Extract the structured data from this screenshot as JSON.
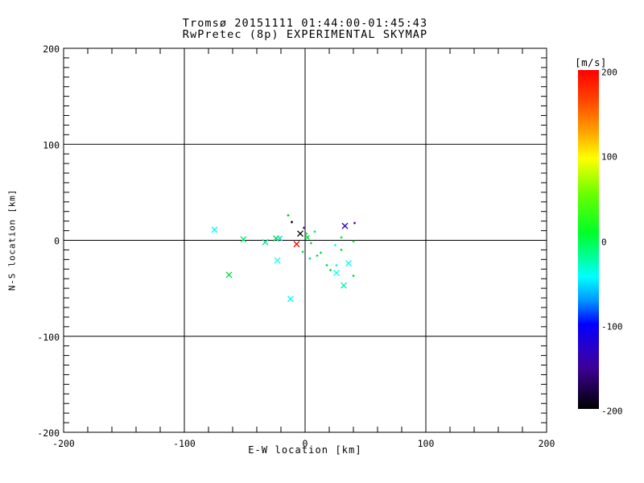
{
  "window": {
    "background": "#FFFFFF",
    "text_color": "#000000"
  },
  "chart_data": {
    "type": "scatter",
    "title": "Tromsø 20151111 01:44:00-01:45:43",
    "subtitle": "RwPretec (8p) EXPERIMENTAL SKYMAP",
    "xlabel": "E-W location [km]",
    "ylabel": "N-S location [km]",
    "xlim": [
      -200,
      200
    ],
    "ylim": [
      -200,
      200
    ],
    "x_ticks": [
      -200,
      -100,
      0,
      100,
      200
    ],
    "y_ticks": [
      -200,
      -100,
      0,
      100,
      200
    ],
    "x_minor_interval": 20,
    "y_minor_interval": 10,
    "grid": true,
    "legend_position": "none",
    "axis_color": "#000000",
    "points": [
      {
        "x": -75,
        "y": 11,
        "color": "#00FFFF",
        "marker": "x",
        "size": 7
      },
      {
        "x": -63,
        "y": -36,
        "color": "#00DC3C",
        "marker": "x",
        "size": 7
      },
      {
        "x": -51,
        "y": 1,
        "color": "#00E65A",
        "marker": "x",
        "size": 7
      },
      {
        "x": -33,
        "y": -2,
        "color": "#00E691",
        "marker": "x",
        "size": 7
      },
      {
        "x": -24,
        "y": 2,
        "color": "#00DC50",
        "marker": "x",
        "size": 7
      },
      {
        "x": -21,
        "y": 2,
        "color": "#00E0C8",
        "marker": "x",
        "size": 6
      },
      {
        "x": -23,
        "y": -21,
        "color": "#00FFFF",
        "marker": "x",
        "size": 7
      },
      {
        "x": -12,
        "y": -61,
        "color": "#00FFFF",
        "marker": "x",
        "size": 7
      },
      {
        "x": -14,
        "y": 26,
        "color": "#00C81E",
        "marker": "+",
        "size": 3
      },
      {
        "x": -11,
        "y": 19,
        "color": "#000000",
        "marker": "+",
        "size": 3
      },
      {
        "x": -4,
        "y": 7,
        "color": "#000000",
        "marker": "x",
        "size": 7
      },
      {
        "x": -7,
        "y": -4,
        "color": "#FF0000",
        "marker": "x",
        "size": 7
      },
      {
        "x": -1,
        "y": 13,
        "color": "#6400AA",
        "marker": "+",
        "size": 3
      },
      {
        "x": 1,
        "y": 7,
        "color": "#00DC3C",
        "marker": "+",
        "size": 3
      },
      {
        "x": 2,
        "y": 3,
        "color": "#00DC3C",
        "marker": "x",
        "size": 5
      },
      {
        "x": 5,
        "y": -3,
        "color": "#00DC3C",
        "marker": "+",
        "size": 3
      },
      {
        "x": 8,
        "y": 9,
        "color": "#00E08C",
        "marker": "+",
        "size": 3
      },
      {
        "x": -2,
        "y": -12,
        "color": "#00DC3C",
        "marker": "+",
        "size": 3
      },
      {
        "x": 4,
        "y": -19,
        "color": "#00D2A0",
        "marker": "+",
        "size": 3
      },
      {
        "x": 10,
        "y": -16,
        "color": "#00DC3C",
        "marker": "+",
        "size": 3
      },
      {
        "x": 13,
        "y": -13,
        "color": "#00DC3C",
        "marker": "+",
        "size": 3
      },
      {
        "x": 18,
        "y": -26,
        "color": "#00DC3C",
        "marker": "+",
        "size": 3
      },
      {
        "x": 21,
        "y": -31,
        "color": "#00DC3C",
        "marker": "+",
        "size": 3
      },
      {
        "x": 26,
        "y": -26,
        "color": "#00FFC8",
        "marker": "+",
        "size": 3
      },
      {
        "x": 25,
        "y": -5,
        "color": "#00FFFF",
        "marker": "+",
        "size": 3
      },
      {
        "x": 30,
        "y": 3,
        "color": "#00DC3C",
        "marker": "+",
        "size": 3
      },
      {
        "x": 30,
        "y": -10,
        "color": "#00DC3C",
        "marker": "+",
        "size": 3
      },
      {
        "x": 40,
        "y": -1,
        "color": "#00DC3C",
        "marker": "+",
        "size": 3
      },
      {
        "x": 40,
        "y": -37,
        "color": "#00DC3C",
        "marker": "+",
        "size": 3
      },
      {
        "x": 41,
        "y": 18,
        "color": "#5A0096",
        "marker": "+",
        "size": 3
      },
      {
        "x": 33,
        "y": 15,
        "color": "#2A00C8",
        "marker": "x",
        "size": 7
      },
      {
        "x": 36,
        "y": -24,
        "color": "#00FFFF",
        "marker": "x",
        "size": 7
      },
      {
        "x": 26,
        "y": -34,
        "color": "#00FFFF",
        "marker": "x",
        "size": 7
      },
      {
        "x": 32,
        "y": -47,
        "color": "#00EFA8",
        "marker": "x",
        "size": 7
      }
    ],
    "colorbar": {
      "unit": "[m/s]",
      "min": -200,
      "max": 200,
      "ticks": [
        200,
        100,
        0,
        -100,
        -200
      ],
      "stops": [
        {
          "pos": 0.0,
          "color": "#FF0000"
        },
        {
          "pos": 0.09,
          "color": "#FF4600"
        },
        {
          "pos": 0.18,
          "color": "#FFA000"
        },
        {
          "pos": 0.26,
          "color": "#FFFF00"
        },
        {
          "pos": 0.37,
          "color": "#64FF00"
        },
        {
          "pos": 0.48,
          "color": "#00FF28"
        },
        {
          "pos": 0.55,
          "color": "#00FF96"
        },
        {
          "pos": 0.61,
          "color": "#00FFFF"
        },
        {
          "pos": 0.68,
          "color": "#0096FF"
        },
        {
          "pos": 0.75,
          "color": "#0000FF"
        },
        {
          "pos": 0.82,
          "color": "#2800C8"
        },
        {
          "pos": 0.88,
          "color": "#3C0096"
        },
        {
          "pos": 1.0,
          "color": "#000000"
        }
      ]
    }
  }
}
